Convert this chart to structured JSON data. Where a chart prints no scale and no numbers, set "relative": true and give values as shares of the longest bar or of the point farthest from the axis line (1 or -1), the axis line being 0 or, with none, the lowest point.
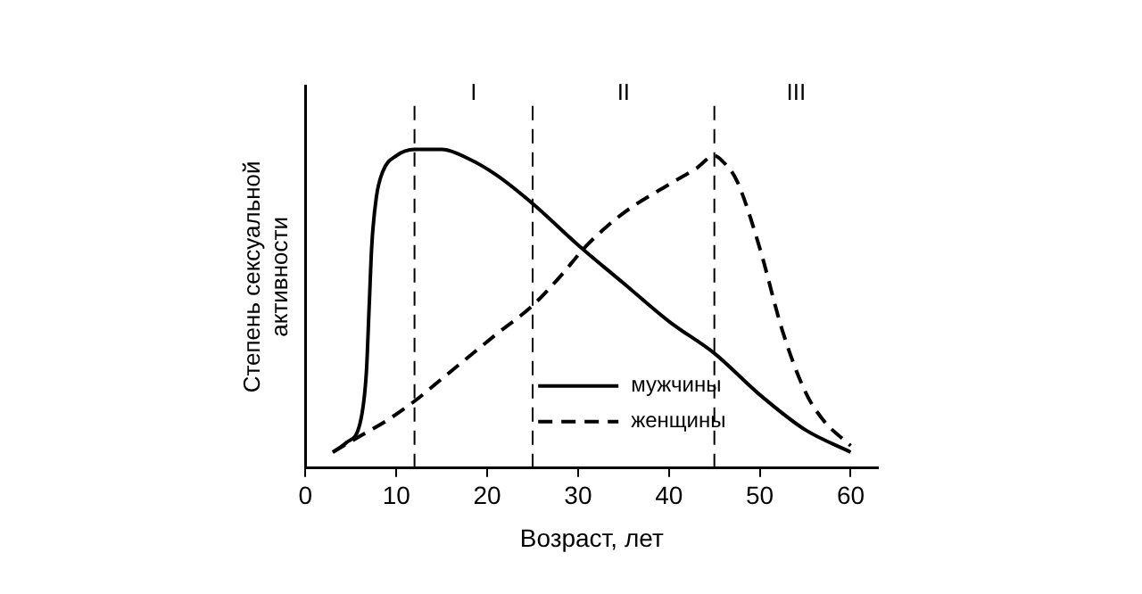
{
  "chart_data": {
    "type": "line",
    "relative": true,
    "xlabel": "Возраст, лет",
    "ylabel": "Степень сексуальной активности",
    "xlim": [
      0,
      63
    ],
    "xticks": [
      0,
      10,
      20,
      30,
      40,
      50,
      60
    ],
    "grid": false,
    "legend": "bottom",
    "marker": "none",
    "series": [
      {
        "name": "мужчины",
        "color": "#000000",
        "line_style": "solid",
        "x": [
          3,
          4.5,
          6,
          6.7,
          7,
          7.3,
          7.8,
          8.5,
          10,
          12,
          15,
          18,
          21,
          25,
          30,
          35,
          40,
          45,
          50,
          55,
          60
        ],
        "values": [
          0.05,
          0.08,
          0.14,
          0.3,
          0.5,
          0.7,
          0.85,
          0.93,
          0.98,
          1,
          1,
          0.97,
          0.92,
          0.83,
          0.7,
          0.58,
          0.46,
          0.36,
          0.23,
          0.12,
          0.05
        ]
      },
      {
        "name": "женщины",
        "color": "#000000",
        "line_style": "dashed",
        "x": [
          3,
          6,
          9,
          12,
          15,
          18,
          21,
          25,
          28,
          31,
          35,
          40,
          43,
          45,
          46,
          47.5,
          50,
          52.5,
          55,
          57,
          60
        ],
        "values": [
          0.05,
          0.1,
          0.15,
          0.21,
          0.28,
          0.35,
          0.42,
          0.51,
          0.6,
          0.7,
          0.8,
          0.89,
          0.94,
          0.98,
          0.96,
          0.9,
          0.69,
          0.43,
          0.24,
          0.15,
          0.07
        ]
      }
    ],
    "ref_lines": [
      {
        "axis": "x",
        "value": 12,
        "line_style": "dashed"
      },
      {
        "axis": "x",
        "value": 25,
        "line_style": "dashed"
      },
      {
        "axis": "x",
        "value": 45,
        "line_style": "dashed"
      }
    ],
    "annotations": [
      "I",
      "II",
      "III"
    ]
  }
}
